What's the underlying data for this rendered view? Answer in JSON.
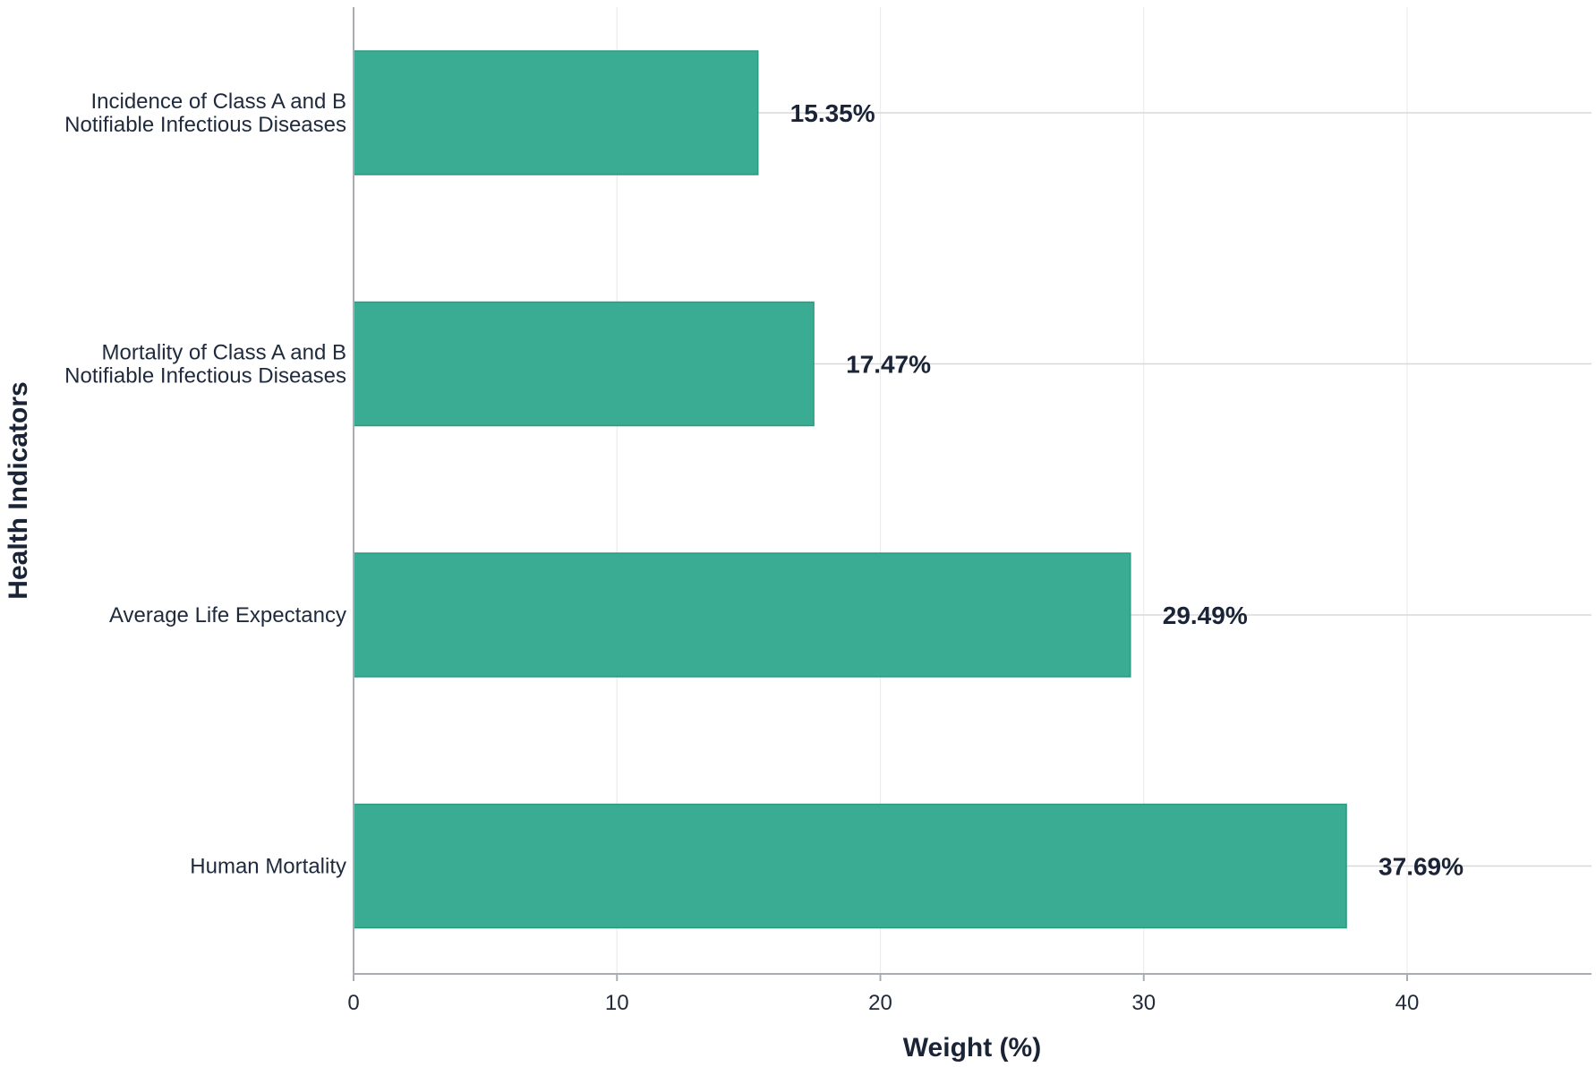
{
  "chart_data": {
    "type": "bar",
    "orientation": "horizontal",
    "categories": [
      [
        "Incidence of Class A and B",
        "Notifiable Infectious Diseases"
      ],
      [
        "Mortality of Class A and B",
        "Notifiable Infectious Diseases"
      ],
      [
        "Average Life Expectancy"
      ],
      [
        "Human Mortality"
      ]
    ],
    "values": [
      15.35,
      17.47,
      29.49,
      37.69
    ],
    "data_labels": [
      "15.35%",
      "17.47%",
      "29.49%",
      "37.69%"
    ],
    "xlabel": "Weight (%)",
    "ylabel": "Health Indicators",
    "xlim": [
      0,
      47
    ],
    "xticks": [
      0,
      10,
      20,
      30,
      40
    ],
    "grid": true,
    "bar_color": "#3aac94",
    "bar_edge_color": "#2a9a82"
  }
}
